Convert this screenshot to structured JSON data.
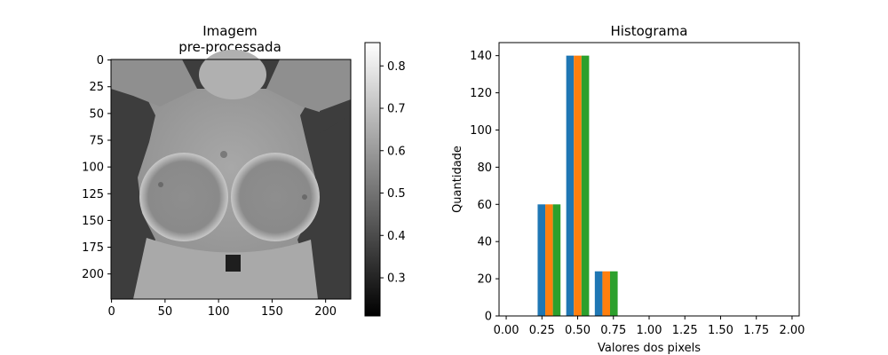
{
  "left_panel": {
    "title_line1": "Imagem",
    "title_line2": "pre-processada",
    "x_ticks": [
      "0",
      "50",
      "100",
      "150",
      "200"
    ],
    "y_ticks": [
      "0",
      "25",
      "50",
      "75",
      "100",
      "125",
      "150",
      "175",
      "200"
    ],
    "colorbar_ticks": [
      "0.8",
      "0.7",
      "0.6",
      "0.5",
      "0.4",
      "0.3"
    ],
    "image_alt": "thermal image grayscale"
  },
  "chart_data": {
    "type": "bar",
    "title": "Histograma",
    "xlabel": "Valores dos pixels",
    "ylabel": "Quantidade",
    "xlim": [
      -0.05,
      2.05
    ],
    "ylim": [
      0,
      147
    ],
    "x_ticks": [
      "0.00",
      "0.25",
      "0.50",
      "0.75",
      "1.00",
      "1.25",
      "1.50",
      "1.75",
      "2.00"
    ],
    "y_ticks": [
      "0",
      "20",
      "40",
      "60",
      "80",
      "100",
      "120",
      "140"
    ],
    "bin_centers": [
      0.3,
      0.5,
      0.7
    ],
    "series": [
      {
        "values": [
          60,
          140,
          24
        ],
        "color": "#1f77b4"
      },
      {
        "values": [
          60,
          140,
          24
        ],
        "color": "#ff7f0e"
      },
      {
        "values": [
          60,
          140,
          24
        ],
        "color": "#2ca02c"
      }
    ]
  }
}
